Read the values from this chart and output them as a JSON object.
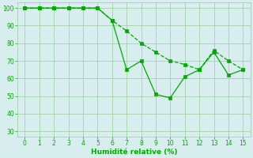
{
  "line1_x": [
    0,
    1,
    2,
    3,
    4,
    5,
    6,
    7
  ],
  "line1_y": [
    100,
    100,
    100,
    100,
    100,
    100,
    93,
    87
  ],
  "line2_x": [
    0,
    1,
    2,
    3,
    4,
    5,
    6,
    7,
    8,
    9,
    10,
    11,
    12,
    13,
    14,
    15
  ],
  "line2_y": [
    100,
    100,
    100,
    100,
    100,
    100,
    93,
    65,
    70,
    51,
    49,
    61,
    65,
    75,
    62,
    65
  ],
  "line1_full_x": [
    0,
    1,
    2,
    3,
    4,
    5,
    6,
    7,
    8,
    9,
    10,
    11,
    12,
    13,
    14,
    15
  ],
  "line1_full_y": [
    100,
    100,
    100,
    100,
    100,
    100,
    93,
    87,
    80,
    75,
    70,
    68,
    65,
    76,
    70,
    65
  ],
  "line_color": "#00aa00",
  "bg_color": "#d8eeee",
  "grid_color": "#99cc99",
  "xlabel": "Humidité relative (%)",
  "xlim": [
    -0.5,
    15.5
  ],
  "ylim": [
    27,
    103
  ],
  "xticks": [
    0,
    1,
    2,
    3,
    4,
    5,
    6,
    7,
    8,
    9,
    10,
    11,
    12,
    13,
    14,
    15
  ],
  "yticks": [
    30,
    40,
    50,
    60,
    70,
    80,
    90,
    100
  ],
  "xlabel_fontsize": 6.5,
  "tick_fontsize": 5.5
}
